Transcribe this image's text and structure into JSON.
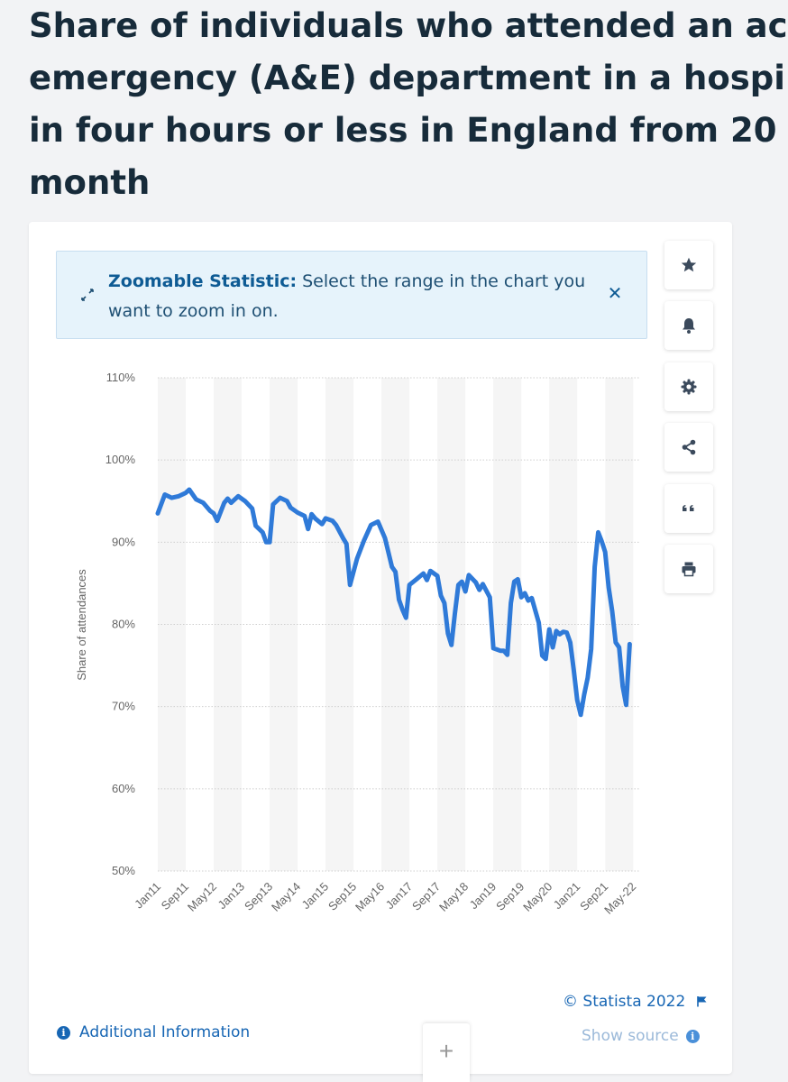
{
  "page": {
    "title_lines": [
      "Share of individuals who attended an ac",
      "emergency (A&E) department in a hospi",
      "in four hours or less in England from 20",
      "month"
    ]
  },
  "banner": {
    "bold": "Zoomable Statistic:",
    "text": " Select the range in the chart you want to zoom in on.",
    "close_icon": "close-icon",
    "icon": "expand-icon"
  },
  "toolbar": {
    "buttons": [
      "star-icon",
      "bell-icon",
      "gear-icon",
      "share-icon",
      "quote-icon",
      "print-icon"
    ]
  },
  "footer": {
    "copyright": "© Statista 2022",
    "additional_info": "Additional Information",
    "show_source": "Show source",
    "plus": "+"
  },
  "colors": {
    "line": "#2f7ad8",
    "title": "#172b3a",
    "link": "#1766b4",
    "band": "#f5f5f5",
    "grid": "#cfcfcf"
  },
  "chart_data": {
    "type": "line",
    "ylabel": "Share of attendances",
    "ylim": [
      50,
      110
    ],
    "yticks": [
      "110%",
      "100%",
      "90%",
      "80%",
      "70%",
      "60%",
      "50%"
    ],
    "ytick_values": [
      110,
      100,
      90,
      80,
      70,
      60,
      50
    ],
    "xtick_labels": [
      "Jan11",
      "Sep11",
      "May12",
      "Jan13",
      "Sep13",
      "May14",
      "Jan15",
      "Sep15",
      "May16",
      "Jan17",
      "Sep17",
      "May18",
      "Jan19",
      "Sep19",
      "May20",
      "Jan21",
      "Sep21",
      "May-22"
    ],
    "x_range": [
      "Jan 2011",
      "Jul 2022"
    ],
    "grid": true,
    "series": [
      {
        "name": "",
        "points": [
          [
            "Jan 2011",
            93.5
          ],
          [
            "Mar 2011",
            95.8
          ],
          [
            "May 2011",
            95.4
          ],
          [
            "Jul 2011",
            95.6
          ],
          [
            "Sep 2011",
            96.0
          ],
          [
            "Oct 2011",
            96.4
          ],
          [
            "Dec 2011",
            95.2
          ],
          [
            "Feb 2012",
            94.8
          ],
          [
            "Apr 2012",
            93.8
          ],
          [
            "May 2012",
            93.5
          ],
          [
            "Jun 2012",
            92.6
          ],
          [
            "Aug 2012",
            94.8
          ],
          [
            "Sep 2012",
            95.3
          ],
          [
            "Oct 2012",
            94.8
          ],
          [
            "Dec 2012",
            95.6
          ],
          [
            "Feb 2013",
            95.0
          ],
          [
            "Apr 2013",
            94.1
          ],
          [
            "May 2013",
            92.0
          ],
          [
            "Jul 2013",
            91.2
          ],
          [
            "Aug 2013",
            90.0
          ],
          [
            "Sep 2013",
            90.0
          ],
          [
            "Oct 2013",
            94.6
          ],
          [
            "Dec 2013",
            95.4
          ],
          [
            "Feb 2014",
            95.0
          ],
          [
            "Mar 2014",
            94.2
          ],
          [
            "May 2014",
            93.6
          ],
          [
            "Jul 2014",
            93.2
          ],
          [
            "Aug 2014",
            91.6
          ],
          [
            "Sep 2014",
            93.4
          ],
          [
            "Oct 2014",
            92.9
          ],
          [
            "Dec 2014",
            92.2
          ],
          [
            "Jan 2015",
            92.9
          ],
          [
            "Mar 2015",
            92.6
          ],
          [
            "Apr 2015",
            92.1
          ],
          [
            "Jun 2015",
            90.5
          ],
          [
            "Jul 2015",
            89.8
          ],
          [
            "Aug 2015",
            84.8
          ],
          [
            "Oct 2015",
            88.0
          ],
          [
            "Dec 2015",
            90.2
          ],
          [
            "Feb 2016",
            92.1
          ],
          [
            "Apr 2016",
            92.5
          ],
          [
            "Jun 2016",
            90.5
          ],
          [
            "Aug 2016",
            87.0
          ],
          [
            "Sep 2016",
            86.4
          ],
          [
            "Oct 2016",
            83.0
          ],
          [
            "Nov 2016",
            81.8
          ],
          [
            "Dec 2016",
            80.8
          ],
          [
            "Jan 2017",
            84.8
          ],
          [
            "Mar 2017",
            85.5
          ],
          [
            "May 2017",
            86.2
          ],
          [
            "Jun 2017",
            85.4
          ],
          [
            "Jul 2017",
            86.5
          ],
          [
            "Sep 2017",
            85.9
          ],
          [
            "Oct 2017",
            83.5
          ],
          [
            "Nov 2017",
            82.6
          ],
          [
            "Dec 2017",
            78.9
          ],
          [
            "Jan 2018",
            77.5
          ],
          [
            "Feb 2018",
            81.3
          ],
          [
            "Mar 2018",
            84.8
          ],
          [
            "Apr 2018",
            85.2
          ],
          [
            "May 2018",
            84.0
          ],
          [
            "Jun 2018",
            86.0
          ],
          [
            "Aug 2018",
            85.1
          ],
          [
            "Sep 2018",
            84.2
          ],
          [
            "Oct 2018",
            84.9
          ],
          [
            "Dec 2018",
            83.3
          ],
          [
            "Jan 2019",
            77.1
          ],
          [
            "Mar 2019",
            76.8
          ],
          [
            "Apr 2019",
            76.8
          ],
          [
            "May 2019",
            76.3
          ],
          [
            "Jun 2019",
            82.6
          ],
          [
            "Jul 2019",
            85.2
          ],
          [
            "Aug 2019",
            85.5
          ],
          [
            "Sep 2019",
            83.3
          ],
          [
            "Oct 2019",
            83.8
          ],
          [
            "Nov 2019",
            82.9
          ],
          [
            "Dec 2019",
            83.2
          ],
          [
            "Feb 2020",
            80.2
          ],
          [
            "Mar 2020",
            76.2
          ],
          [
            "Apr 2020",
            75.8
          ],
          [
            "May 2020",
            79.4
          ],
          [
            "Jun 2020",
            77.2
          ],
          [
            "Jul 2020",
            79.2
          ],
          [
            "Aug 2020",
            78.8
          ],
          [
            "Sep 2020",
            79.1
          ],
          [
            "Oct 2020",
            79.0
          ],
          [
            "Nov 2020",
            77.8
          ],
          [
            "Dec 2020",
            74.5
          ],
          [
            "Jan 2021",
            70.8
          ],
          [
            "Feb 2021",
            69.0
          ],
          [
            "Mar 2021",
            71.5
          ],
          [
            "Apr 2021",
            73.5
          ],
          [
            "May 2021",
            77.0
          ],
          [
            "Jun 2021",
            87.0
          ],
          [
            "Jul 2021",
            91.2
          ],
          [
            "Aug 2021",
            90.1
          ],
          [
            "Sep 2021",
            88.8
          ],
          [
            "Oct 2021",
            84.5
          ],
          [
            "Nov 2021",
            81.6
          ],
          [
            "Dec 2021",
            77.8
          ],
          [
            "Jan 2022",
            77.2
          ],
          [
            "Feb 2022",
            72.5
          ],
          [
            "Mar 2022",
            70.2
          ],
          [
            "Apr 2022",
            77.6
          ]
        ]
      }
    ]
  }
}
